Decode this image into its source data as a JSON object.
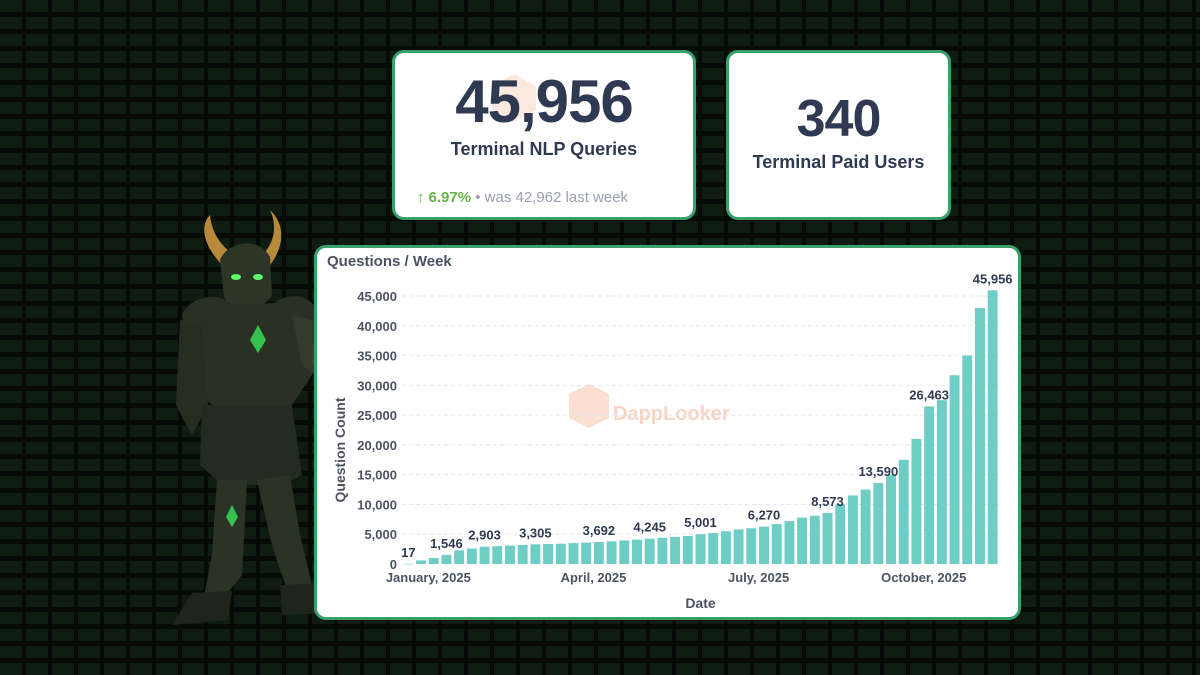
{
  "queries_card": {
    "value": "45,956",
    "label": "Terminal NLP Queries",
    "change_pct": "6.97%",
    "was_text": "• was 42,962  last week",
    "trend_color": "#63b545"
  },
  "users_card": {
    "value": "340",
    "label": "Terminal Paid Users"
  },
  "watermark": {
    "text": "DappLooker",
    "color": "#f2a27f"
  },
  "colors": {
    "bar": "#6ecdc4",
    "card_border": "#3aa06a",
    "text_dark": "#2f3a52"
  },
  "chart_data": {
    "type": "bar",
    "title": "Questions / Week",
    "xlabel": "Date",
    "ylabel": "Question Count",
    "ylim": [
      0,
      45000
    ],
    "yticks": [
      0,
      5000,
      10000,
      15000,
      20000,
      25000,
      30000,
      35000,
      40000,
      45000
    ],
    "ytick_labels": [
      "0",
      "5,000",
      "10,000",
      "15,000",
      "20,000",
      "25,000",
      "30,000",
      "35,000",
      "40,000",
      "45,000"
    ],
    "grid": true,
    "x_tick_labels": [
      {
        "index": 0,
        "label": "January, 2025"
      },
      {
        "index": 13,
        "label": "April, 2025"
      },
      {
        "index": 26,
        "label": "July, 2025"
      },
      {
        "index": 39,
        "label": "October, 2025"
      }
    ],
    "values": [
      17,
      600,
      1000,
      1546,
      2300,
      2600,
      2903,
      3000,
      3100,
      3200,
      3305,
      3350,
      3400,
      3500,
      3600,
      3692,
      3800,
      3950,
      4100,
      4245,
      4400,
      4550,
      4700,
      5001,
      5200,
      5500,
      5800,
      6000,
      6270,
      6700,
      7200,
      7800,
      8100,
      8573,
      10000,
      11500,
      12500,
      13590,
      15000,
      17500,
      21000,
      26463,
      27500,
      31700,
      35000,
      43000,
      45956
    ],
    "data_labels": [
      {
        "index": 0,
        "label": "17"
      },
      {
        "index": 3,
        "label": "1,546"
      },
      {
        "index": 6,
        "label": "2,903"
      },
      {
        "index": 10,
        "label": "3,305"
      },
      {
        "index": 15,
        "label": "3,692"
      },
      {
        "index": 19,
        "label": "4,245"
      },
      {
        "index": 23,
        "label": "5,001"
      },
      {
        "index": 28,
        "label": "6,270"
      },
      {
        "index": 33,
        "label": "8,573"
      },
      {
        "index": 37,
        "label": "13,590"
      },
      {
        "index": 41,
        "label": "26,463"
      },
      {
        "index": 46,
        "label": "45,956"
      }
    ]
  }
}
